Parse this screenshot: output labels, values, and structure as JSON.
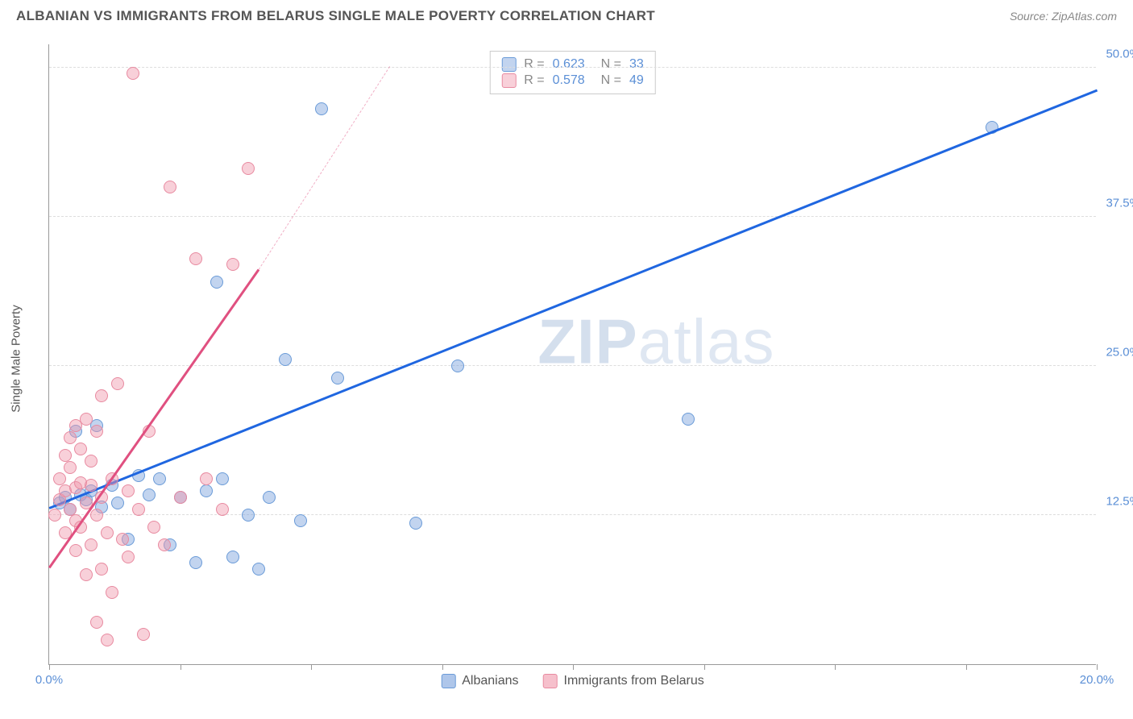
{
  "header": {
    "title": "ALBANIAN VS IMMIGRANTS FROM BELARUS SINGLE MALE POVERTY CORRELATION CHART",
    "source": "Source: ZipAtlas.com"
  },
  "chart": {
    "type": "scatter",
    "ylabel": "Single Male Poverty",
    "xlim": [
      0,
      20
    ],
    "ylim": [
      0,
      52
    ],
    "xtick_positions": [
      0,
      2.5,
      5,
      7.5,
      10,
      12.5,
      15,
      17.5,
      20
    ],
    "xtick_labels": {
      "0": "0.0%",
      "20": "20.0%"
    },
    "ytick_positions": [
      12.5,
      25,
      37.5,
      50
    ],
    "ytick_labels": {
      "12.5": "12.5%",
      "25": "25.0%",
      "37.5": "37.5%",
      "50": "50.0%"
    },
    "grid_color": "#dddddd",
    "background_color": "#ffffff",
    "axis_color": "#999999",
    "tick_label_color": "#5b8fd6",
    "series": [
      {
        "name": "Albanians",
        "color_fill": "rgba(120,160,220,0.45)",
        "color_stroke": "#6a9bd8",
        "trend_color": "#1f66e0",
        "r": "0.623",
        "n": "33",
        "trend": {
          "x1": 0,
          "y1": 13.0,
          "x2": 20,
          "y2": 48.0
        },
        "points": [
          [
            0.2,
            13.5
          ],
          [
            0.3,
            14.0
          ],
          [
            0.4,
            13.0
          ],
          [
            0.5,
            19.5
          ],
          [
            0.6,
            14.2
          ],
          [
            0.7,
            13.8
          ],
          [
            0.8,
            14.5
          ],
          [
            0.9,
            20.0
          ],
          [
            1.0,
            13.2
          ],
          [
            1.2,
            15.0
          ],
          [
            1.3,
            13.5
          ],
          [
            1.5,
            10.5
          ],
          [
            1.7,
            15.8
          ],
          [
            1.9,
            14.2
          ],
          [
            2.1,
            15.5
          ],
          [
            2.3,
            10.0
          ],
          [
            2.5,
            14.0
          ],
          [
            2.8,
            8.5
          ],
          [
            3.0,
            14.5
          ],
          [
            3.2,
            32.0
          ],
          [
            3.3,
            15.5
          ],
          [
            3.5,
            9.0
          ],
          [
            3.8,
            12.5
          ],
          [
            4.0,
            8.0
          ],
          [
            4.2,
            14.0
          ],
          [
            4.5,
            25.5
          ],
          [
            4.8,
            12.0
          ],
          [
            5.2,
            46.5
          ],
          [
            5.5,
            24.0
          ],
          [
            7.0,
            11.8
          ],
          [
            7.8,
            25.0
          ],
          [
            12.2,
            20.5
          ],
          [
            18.0,
            45.0
          ]
        ]
      },
      {
        "name": "Immigrants from Belarus",
        "color_fill": "rgba(240,150,170,0.45)",
        "color_stroke": "#e88aa0",
        "trend_color": "#e05080",
        "trend_dash_color": "rgba(224,80,128,0.45)",
        "r": "0.578",
        "n": "49",
        "trend": {
          "x1": 0,
          "y1": 8.0,
          "x2": 4.0,
          "y2": 33.0
        },
        "trend_dash": {
          "x1": 4.0,
          "y1": 33.0,
          "x2": 6.5,
          "y2": 50.0
        },
        "points": [
          [
            0.1,
            12.5
          ],
          [
            0.2,
            13.8
          ],
          [
            0.2,
            15.5
          ],
          [
            0.3,
            11.0
          ],
          [
            0.3,
            14.5
          ],
          [
            0.3,
            17.5
          ],
          [
            0.4,
            19.0
          ],
          [
            0.4,
            13.0
          ],
          [
            0.4,
            16.5
          ],
          [
            0.5,
            20.0
          ],
          [
            0.5,
            12.0
          ],
          [
            0.5,
            9.5
          ],
          [
            0.5,
            14.8
          ],
          [
            0.6,
            18.0
          ],
          [
            0.6,
            11.5
          ],
          [
            0.6,
            15.2
          ],
          [
            0.7,
            7.5
          ],
          [
            0.7,
            13.5
          ],
          [
            0.7,
            20.5
          ],
          [
            0.8,
            10.0
          ],
          [
            0.8,
            15.0
          ],
          [
            0.8,
            17.0
          ],
          [
            0.9,
            3.5
          ],
          [
            0.9,
            12.5
          ],
          [
            0.9,
            19.5
          ],
          [
            1.0,
            8.0
          ],
          [
            1.0,
            14.0
          ],
          [
            1.0,
            22.5
          ],
          [
            1.1,
            2.0
          ],
          [
            1.1,
            11.0
          ],
          [
            1.2,
            15.5
          ],
          [
            1.2,
            6.0
          ],
          [
            1.3,
            23.5
          ],
          [
            1.4,
            10.5
          ],
          [
            1.5,
            9.0
          ],
          [
            1.5,
            14.5
          ],
          [
            1.6,
            49.5
          ],
          [
            1.7,
            13.0
          ],
          [
            1.8,
            2.5
          ],
          [
            1.9,
            19.5
          ],
          [
            2.0,
            11.5
          ],
          [
            2.2,
            10.0
          ],
          [
            2.3,
            40.0
          ],
          [
            2.5,
            14.0
          ],
          [
            2.8,
            34.0
          ],
          [
            3.0,
            15.5
          ],
          [
            3.3,
            13.0
          ],
          [
            3.5,
            33.5
          ],
          [
            3.8,
            41.5
          ]
        ]
      }
    ],
    "watermark": {
      "bold": "ZIP",
      "rest": "atlas"
    },
    "legend_bottom": [
      {
        "label": "Albanians",
        "fill": "rgba(120,160,220,0.6)",
        "stroke": "#6a9bd8"
      },
      {
        "label": "Immigrants from Belarus",
        "fill": "rgba(240,150,170,0.6)",
        "stroke": "#e88aa0"
      }
    ],
    "legend_top_labels": {
      "r": "R =",
      "n": "N ="
    }
  }
}
